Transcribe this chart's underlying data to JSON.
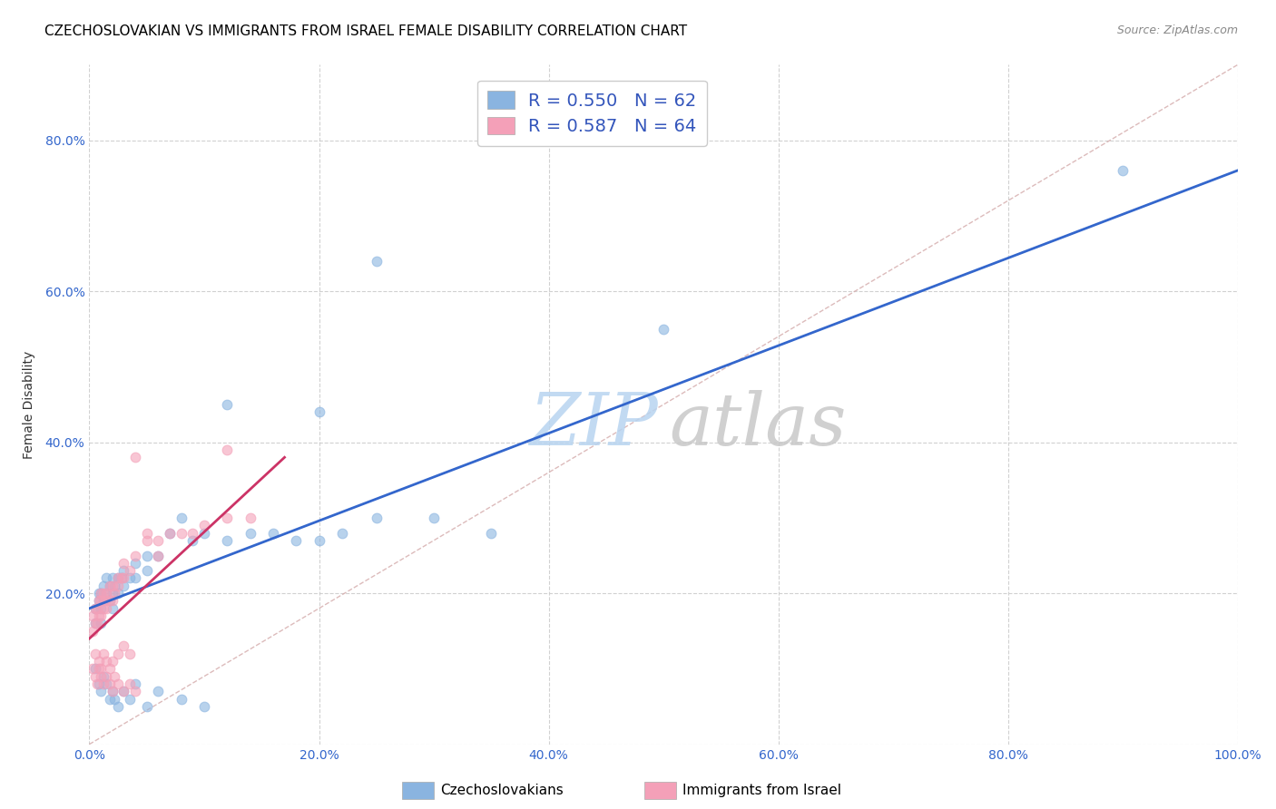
{
  "title": "CZECHOSLOVAKIAN VS IMMIGRANTS FROM ISRAEL FEMALE DISABILITY CORRELATION CHART",
  "source": "Source: ZipAtlas.com",
  "ylabel": "Female Disability",
  "xlim": [
    0.0,
    1.0
  ],
  "ylim": [
    0.0,
    0.9
  ],
  "xticks": [
    0.0,
    0.2,
    0.4,
    0.6,
    0.8,
    1.0
  ],
  "yticks": [
    0.0,
    0.2,
    0.4,
    0.6,
    0.8
  ],
  "xtick_labels": [
    "0.0%",
    "20.0%",
    "40.0%",
    "60.0%",
    "80.0%",
    "100.0%"
  ],
  "ytick_labels": [
    "",
    "20.0%",
    "40.0%",
    "60.0%",
    "80.0%"
  ],
  "legend_label1": "Czechoslovakians",
  "legend_label2": "Immigrants from Israel",
  "R1": "0.550",
  "N1": "62",
  "R2": "0.587",
  "N2": "64",
  "color_blue": "#8ab4e0",
  "color_pink": "#f4a0b8",
  "color_blue_line": "#3366cc",
  "color_pink_line": "#cc3366",
  "color_diag": "#d4aaaa",
  "title_fontsize": 11,
  "axis_label_fontsize": 10,
  "tick_fontsize": 10,
  "blue_scatter_x": [
    0.005,
    0.005,
    0.008,
    0.008,
    0.01,
    0.01,
    0.01,
    0.012,
    0.012,
    0.015,
    0.015,
    0.018,
    0.018,
    0.02,
    0.02,
    0.02,
    0.022,
    0.025,
    0.025,
    0.028,
    0.03,
    0.03,
    0.035,
    0.04,
    0.04,
    0.05,
    0.05,
    0.06,
    0.07,
    0.08,
    0.09,
    0.1,
    0.12,
    0.14,
    0.16,
    0.18,
    0.2,
    0.22,
    0.25,
    0.3,
    0.35,
    0.5,
    0.9,
    0.005,
    0.008,
    0.01,
    0.012,
    0.015,
    0.018,
    0.02,
    0.022,
    0.025,
    0.03,
    0.035,
    0.04,
    0.05,
    0.06,
    0.08,
    0.1,
    0.12,
    0.2,
    0.25
  ],
  "blue_scatter_y": [
    0.16,
    0.18,
    0.19,
    0.2,
    0.16,
    0.18,
    0.2,
    0.19,
    0.21,
    0.2,
    0.22,
    0.19,
    0.21,
    0.18,
    0.2,
    0.22,
    0.21,
    0.2,
    0.22,
    0.22,
    0.21,
    0.23,
    0.22,
    0.24,
    0.22,
    0.25,
    0.23,
    0.25,
    0.28,
    0.3,
    0.27,
    0.28,
    0.27,
    0.28,
    0.28,
    0.27,
    0.27,
    0.28,
    0.3,
    0.3,
    0.28,
    0.55,
    0.76,
    0.1,
    0.08,
    0.07,
    0.09,
    0.08,
    0.06,
    0.07,
    0.06,
    0.05,
    0.07,
    0.06,
    0.08,
    0.05,
    0.07,
    0.06,
    0.05,
    0.45,
    0.44,
    0.64
  ],
  "pink_scatter_x": [
    0.003,
    0.003,
    0.005,
    0.005,
    0.007,
    0.007,
    0.008,
    0.008,
    0.01,
    0.01,
    0.01,
    0.012,
    0.012,
    0.014,
    0.015,
    0.015,
    0.018,
    0.018,
    0.02,
    0.02,
    0.022,
    0.025,
    0.025,
    0.028,
    0.03,
    0.03,
    0.035,
    0.04,
    0.05,
    0.06,
    0.07,
    0.08,
    0.09,
    0.1,
    0.12,
    0.14,
    0.003,
    0.005,
    0.007,
    0.008,
    0.01,
    0.012,
    0.015,
    0.018,
    0.02,
    0.022,
    0.025,
    0.03,
    0.035,
    0.04,
    0.005,
    0.008,
    0.01,
    0.012,
    0.015,
    0.018,
    0.02,
    0.025,
    0.03,
    0.035,
    0.04,
    0.05,
    0.06,
    0.12
  ],
  "pink_scatter_y": [
    0.15,
    0.17,
    0.16,
    0.18,
    0.16,
    0.18,
    0.17,
    0.19,
    0.17,
    0.19,
    0.2,
    0.18,
    0.2,
    0.19,
    0.18,
    0.2,
    0.19,
    0.21,
    0.19,
    0.21,
    0.2,
    0.21,
    0.22,
    0.22,
    0.22,
    0.24,
    0.23,
    0.25,
    0.27,
    0.27,
    0.28,
    0.28,
    0.28,
    0.29,
    0.3,
    0.3,
    0.1,
    0.09,
    0.08,
    0.1,
    0.09,
    0.08,
    0.09,
    0.08,
    0.07,
    0.09,
    0.08,
    0.07,
    0.08,
    0.07,
    0.12,
    0.11,
    0.1,
    0.12,
    0.11,
    0.1,
    0.11,
    0.12,
    0.13,
    0.12,
    0.38,
    0.28,
    0.25,
    0.39
  ],
  "blue_line_x": [
    0.0,
    1.0
  ],
  "blue_line_y": [
    0.18,
    0.76
  ],
  "pink_line_x": [
    0.0,
    0.17
  ],
  "pink_line_y": [
    0.14,
    0.38
  ]
}
